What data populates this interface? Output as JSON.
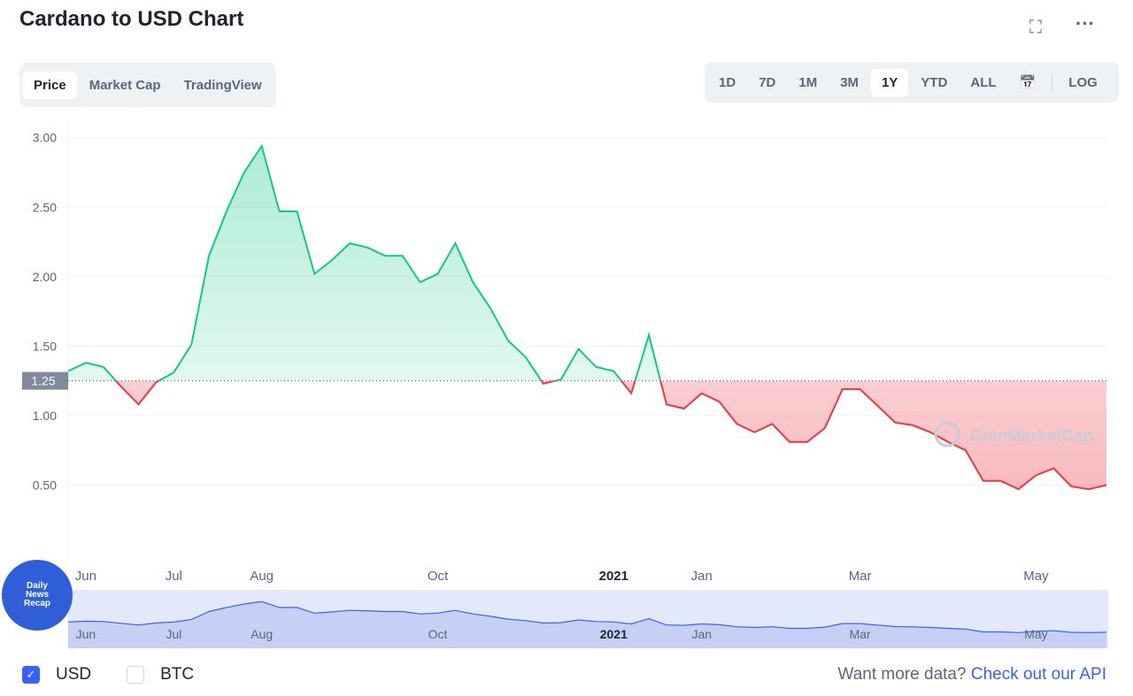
{
  "header": {
    "title": "Cardano to USD Chart"
  },
  "tabs": {
    "items": [
      "Price",
      "Market Cap",
      "TradingView"
    ],
    "active": 0
  },
  "ranges": {
    "items": [
      "1D",
      "7D",
      "1M",
      "3M",
      "1Y",
      "YTD",
      "ALL"
    ],
    "active": 4,
    "log": "LOG"
  },
  "chart_data": {
    "type": "line",
    "categories": [
      null,
      "Jun",
      null,
      null,
      null,
      null,
      "Jul",
      null,
      null,
      null,
      null,
      "Aug",
      null,
      null,
      null,
      null,
      null,
      null,
      null,
      null,
      null,
      "Oct",
      null,
      null,
      null,
      null,
      null,
      null,
      null,
      null,
      null,
      "2021",
      null,
      null,
      null,
      null,
      "Jan",
      null,
      null,
      null,
      null,
      null,
      null,
      null,
      null,
      "Mar",
      null,
      null,
      null,
      null,
      null,
      null,
      null,
      null,
      null,
      "May",
      null,
      null,
      null,
      null
    ],
    "values": [
      1.32,
      1.38,
      1.35,
      1.21,
      1.08,
      1.24,
      1.31,
      1.51,
      2.15,
      2.47,
      2.75,
      2.94,
      2.47,
      2.47,
      2.02,
      2.12,
      2.24,
      2.21,
      2.15,
      2.15,
      1.96,
      2.02,
      2.24,
      1.96,
      1.77,
      1.54,
      1.42,
      1.23,
      1.26,
      1.48,
      1.35,
      1.32,
      1.16,
      1.58,
      1.08,
      1.05,
      1.16,
      1.1,
      0.94,
      0.88,
      0.94,
      0.81,
      0.81,
      0.91,
      1.19,
      1.19,
      1.07,
      0.95,
      0.93,
      0.88,
      0.81,
      0.75,
      0.53,
      0.53,
      0.47,
      0.57,
      0.62,
      0.49,
      0.47,
      0.5
    ],
    "ylim": [
      0,
      3.1
    ],
    "yticks": [
      {
        "value": 0.5,
        "label": "0.50"
      },
      {
        "value": 1,
        "label": "1.00"
      },
      {
        "value": 1.5,
        "label": "1.50"
      },
      {
        "value": 2,
        "label": "2.00"
      },
      {
        "value": 2.5,
        "label": "2.50"
      },
      {
        "value": 3,
        "label": "3.00"
      }
    ],
    "baseline": {
      "value": 1.25,
      "label": "1.25"
    },
    "up_color": "#16c784",
    "down_color": "#ea3943",
    "grid": true,
    "watermark": "CoinMarketCap"
  },
  "badge": {
    "lines": [
      "Daily",
      "News",
      "Recap"
    ]
  },
  "footer": {
    "currencies": [
      {
        "label": "USD",
        "checked": true
      },
      {
        "label": "BTC",
        "checked": false
      }
    ],
    "prompt": "Want more data?",
    "link": "Check out our API"
  }
}
